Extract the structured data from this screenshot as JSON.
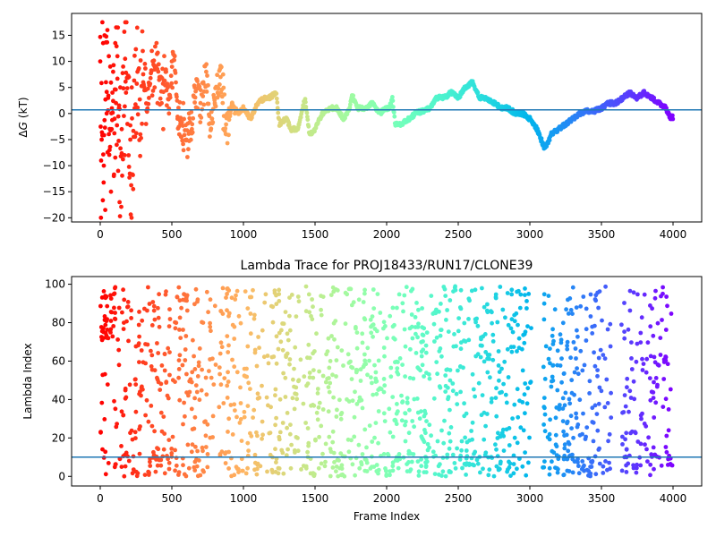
{
  "chart_data": [
    {
      "type": "scatter",
      "title": "",
      "xlabel": "",
      "ylabel": "ΔG (kT)",
      "ylabel_text": "(kT)",
      "ylabel_symbol": "Δ",
      "ylabel_var": "G",
      "xlim": [
        -200,
        4200
      ],
      "ylim": [
        -20.8,
        19.2
      ],
      "xticks": [
        0,
        500,
        1000,
        1500,
        2000,
        2500,
        3000,
        3500,
        4000
      ],
      "yticks": [
        -20,
        -15,
        -10,
        -5,
        0,
        5,
        10,
        15
      ],
      "hline": 0.7,
      "hline_color": "#1f77b4",
      "colormap": "rainbow (frame index, red → violet)",
      "trace_anchors": [
        [
          0,
          10
        ],
        [
          20,
          -18
        ],
        [
          40,
          15
        ],
        [
          60,
          -9
        ],
        [
          80,
          6
        ],
        [
          100,
          -4
        ],
        [
          120,
          12
        ],
        [
          140,
          -12
        ],
        [
          160,
          3
        ],
        [
          180,
          10
        ],
        [
          200,
          -6
        ],
        [
          220,
          -14
        ],
        [
          240,
          5
        ],
        [
          260,
          6
        ],
        [
          280,
          -1
        ],
        [
          300,
          9
        ],
        [
          330,
          2
        ],
        [
          360,
          6
        ],
        [
          390,
          11
        ],
        [
          420,
          4
        ],
        [
          450,
          8
        ],
        [
          480,
          1
        ],
        [
          520,
          12
        ],
        [
          540,
          -2
        ],
        [
          560,
          -1
        ],
        [
          600,
          -6
        ],
        [
          640,
          -2
        ],
        [
          660,
          5
        ],
        [
          700,
          1
        ],
        [
          740,
          8
        ],
        [
          770,
          -3
        ],
        [
          800,
          3
        ],
        [
          850,
          7
        ],
        [
          880,
          -4
        ],
        [
          920,
          2
        ],
        [
          960,
          0
        ],
        [
          1000,
          1
        ],
        [
          1050,
          -1
        ],
        [
          1100,
          2
        ],
        [
          1150,
          3
        ],
        [
          1180,
          3
        ],
        [
          1230,
          4
        ],
        [
          1250,
          -2
        ],
        [
          1300,
          -1
        ],
        [
          1330,
          -3
        ],
        [
          1380,
          -3
        ],
        [
          1430,
          3
        ],
        [
          1460,
          -4
        ],
        [
          1500,
          -3
        ],
        [
          1550,
          0
        ],
        [
          1600,
          1
        ],
        [
          1650,
          1
        ],
        [
          1700,
          -1
        ],
        [
          1740,
          1
        ],
        [
          1760,
          3.5
        ],
        [
          1800,
          1
        ],
        [
          1850,
          1
        ],
        [
          1900,
          2
        ],
        [
          1950,
          0
        ],
        [
          2000,
          1
        ],
        [
          2020,
          1
        ],
        [
          2040,
          3
        ],
        [
          2060,
          -2
        ],
        [
          2100,
          -2
        ],
        [
          2160,
          -1
        ],
        [
          2200,
          0
        ],
        [
          2300,
          1
        ],
        [
          2350,
          3
        ],
        [
          2400,
          3
        ],
        [
          2450,
          4
        ],
        [
          2500,
          3
        ],
        [
          2550,
          5
        ],
        [
          2600,
          6
        ],
        [
          2650,
          3
        ],
        [
          2700,
          3
        ],
        [
          2750,
          2
        ],
        [
          2800,
          1
        ],
        [
          2850,
          1
        ],
        [
          2900,
          0
        ],
        [
          2950,
          0
        ],
        [
          3000,
          -1
        ],
        [
          3050,
          -3
        ],
        [
          3100,
          -6.5
        ],
        [
          3120,
          -6
        ],
        [
          3150,
          -4
        ],
        [
          3200,
          -3
        ],
        [
          3250,
          -2
        ],
        [
          3300,
          -1
        ],
        [
          3350,
          0
        ],
        [
          3400,
          0.5
        ],
        [
          3450,
          0.5
        ],
        [
          3500,
          1
        ],
        [
          3550,
          2
        ],
        [
          3600,
          2
        ],
        [
          3650,
          3
        ],
        [
          3700,
          4
        ],
        [
          3750,
          3
        ],
        [
          3800,
          4
        ],
        [
          3850,
          3
        ],
        [
          3900,
          2
        ],
        [
          3950,
          1
        ],
        [
          3980,
          -0.7
        ],
        [
          4000,
          -0.7
        ]
      ],
      "scatter_points": [
        [
          0,
          10
        ],
        [
          5,
          -20
        ],
        [
          10,
          -5
        ],
        [
          15,
          17.5
        ],
        [
          20,
          13.5
        ],
        [
          25,
          -10
        ],
        [
          30,
          15
        ],
        [
          35,
          -18.5
        ],
        [
          40,
          6
        ],
        [
          45,
          0
        ],
        [
          50,
          16
        ],
        [
          55,
          3
        ],
        [
          60,
          11
        ],
        [
          65,
          -7
        ],
        [
          70,
          9
        ],
        [
          75,
          -15
        ],
        [
          80,
          -3
        ],
        [
          85,
          4
        ],
        [
          90,
          8
        ],
        [
          95,
          -12
        ],
        [
          100,
          -1
        ],
        [
          105,
          13.5
        ],
        [
          110,
          2
        ],
        [
          115,
          -6
        ],
        [
          120,
          11
        ],
        [
          125,
          -11
        ],
        [
          130,
          1
        ],
        [
          135,
          -17
        ],
        [
          140,
          5
        ],
        [
          150,
          -3
        ],
        [
          160,
          9
        ],
        [
          170,
          -8
        ],
        [
          175,
          17.5
        ],
        [
          180,
          4
        ],
        [
          190,
          -2
        ],
        [
          200,
          7
        ],
        [
          210,
          -5
        ],
        [
          220,
          5
        ],
        [
          230,
          -14.5
        ],
        [
          240,
          1
        ],
        [
          260,
          8
        ],
        [
          280,
          -4
        ],
        [
          300,
          6
        ],
        [
          320,
          -2
        ],
        [
          340,
          3
        ],
        [
          360,
          12
        ],
        [
          380,
          5
        ],
        [
          400,
          2
        ],
        [
          420,
          7
        ],
        [
          440,
          -3
        ],
        [
          460,
          8
        ],
        [
          480,
          0
        ],
        [
          500,
          10
        ],
        [
          520,
          11
        ],
        [
          540,
          -1
        ],
        [
          560,
          -2
        ],
        [
          580,
          2
        ],
        [
          600,
          -5
        ],
        [
          620,
          0
        ],
        [
          640,
          -3
        ],
        [
          660,
          5
        ],
        [
          680,
          1
        ],
        [
          700,
          2
        ],
        [
          720,
          6
        ],
        [
          740,
          8
        ],
        [
          760,
          -2
        ],
        [
          780,
          -1
        ],
        [
          800,
          2
        ],
        [
          820,
          4
        ],
        [
          840,
          7
        ],
        [
          860,
          -3
        ],
        [
          880,
          -4
        ],
        [
          900,
          1
        ],
        [
          920,
          2
        ],
        [
          940,
          0
        ]
      ]
    },
    {
      "type": "scatter",
      "title": "Lambda Trace for PROJ18433/RUN17/CLONE39",
      "xlabel": "Frame Index",
      "ylabel": "Lambda Index",
      "xlim": [
        -200,
        4200
      ],
      "ylim": [
        -5,
        104
      ],
      "xticks": [
        0,
        500,
        1000,
        1500,
        2000,
        2500,
        3000,
        3500,
        4000
      ],
      "yticks": [
        0,
        20,
        40,
        60,
        80,
        100
      ],
      "hline": 10,
      "hline_color": "#1f77b4",
      "n_points": 1600,
      "gaps": [
        [
          3010,
          3090
        ],
        [
          3570,
          3640
        ]
      ],
      "colormap": "rainbow (frame index, red → violet)"
    }
  ]
}
